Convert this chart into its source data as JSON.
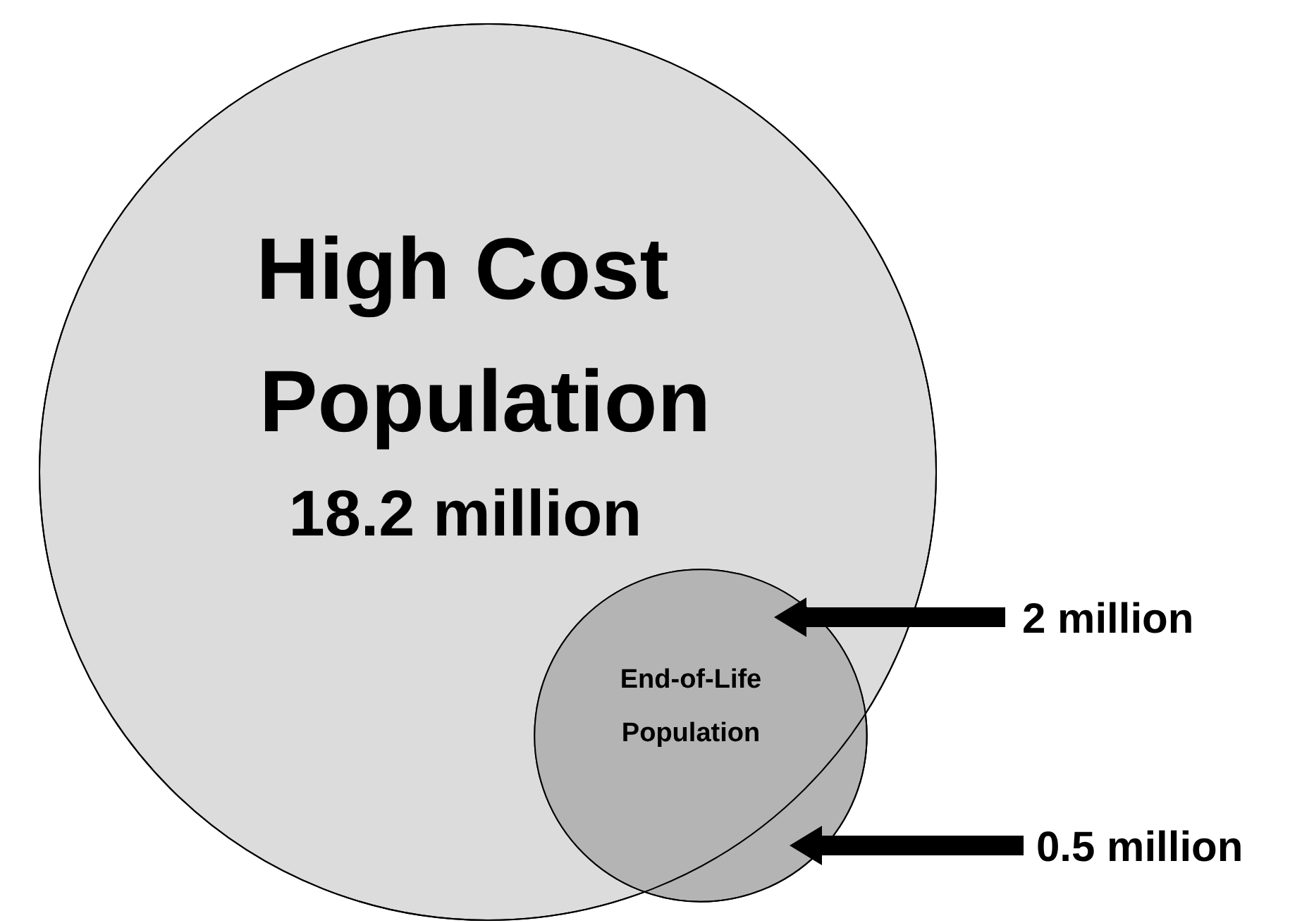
{
  "chart_data": {
    "type": "other",
    "categories": [
      "High Cost Population",
      "End-of-Life Population",
      null
    ],
    "values": [
      18.2,
      2,
      0.5
    ],
    "value_labels": [
      "18.2 million",
      "2 million",
      "0.5 million"
    ],
    "colors": [
      "#dcdcdc",
      "#b4b4b4",
      "#b4b4b4"
    ]
  }
}
